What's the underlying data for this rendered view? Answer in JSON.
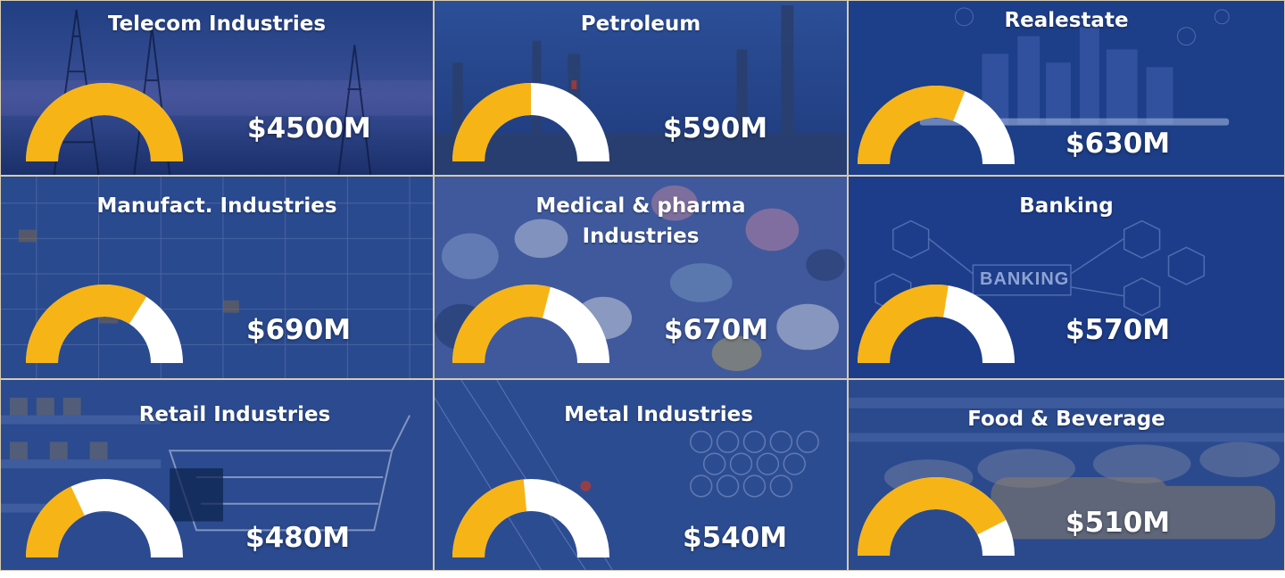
{
  "colors": {
    "gauge_fill": "#F7B417",
    "gauge_track": "#FFFFFF",
    "tile_base": "#1C3F86"
  },
  "chart_data": {
    "type": "gauge",
    "tiles": [
      {
        "title": "Telecom Industries",
        "value_label": "$4500M",
        "value": 4500,
        "fill_fraction": 1.0
      },
      {
        "title": "Petroleum",
        "value_label": "$590M",
        "value": 590,
        "fill_fraction": 0.5
      },
      {
        "title": "Realestate",
        "value_label": "$630M",
        "value": 630,
        "fill_fraction": 0.62
      },
      {
        "title": "Manufact. Industries",
        "value_label": "$690M",
        "value": 690,
        "fill_fraction": 0.68
      },
      {
        "title": "Medical & pharma\nIndustries",
        "value_label": "$670M",
        "value": 670,
        "fill_fraction": 0.58
      },
      {
        "title": "Banking",
        "value_label": "$570M",
        "value": 570,
        "fill_fraction": 0.55
      },
      {
        "title": "Retail Industries",
        "value_label": "$480M",
        "value": 480,
        "fill_fraction": 0.36
      },
      {
        "title": "Metal Industries",
        "value_label": "$540M",
        "value": 540,
        "fill_fraction": 0.47
      },
      {
        "title": "Food & Beverage",
        "value_label": "$510M",
        "value": 510,
        "fill_fraction": 0.85
      }
    ]
  }
}
